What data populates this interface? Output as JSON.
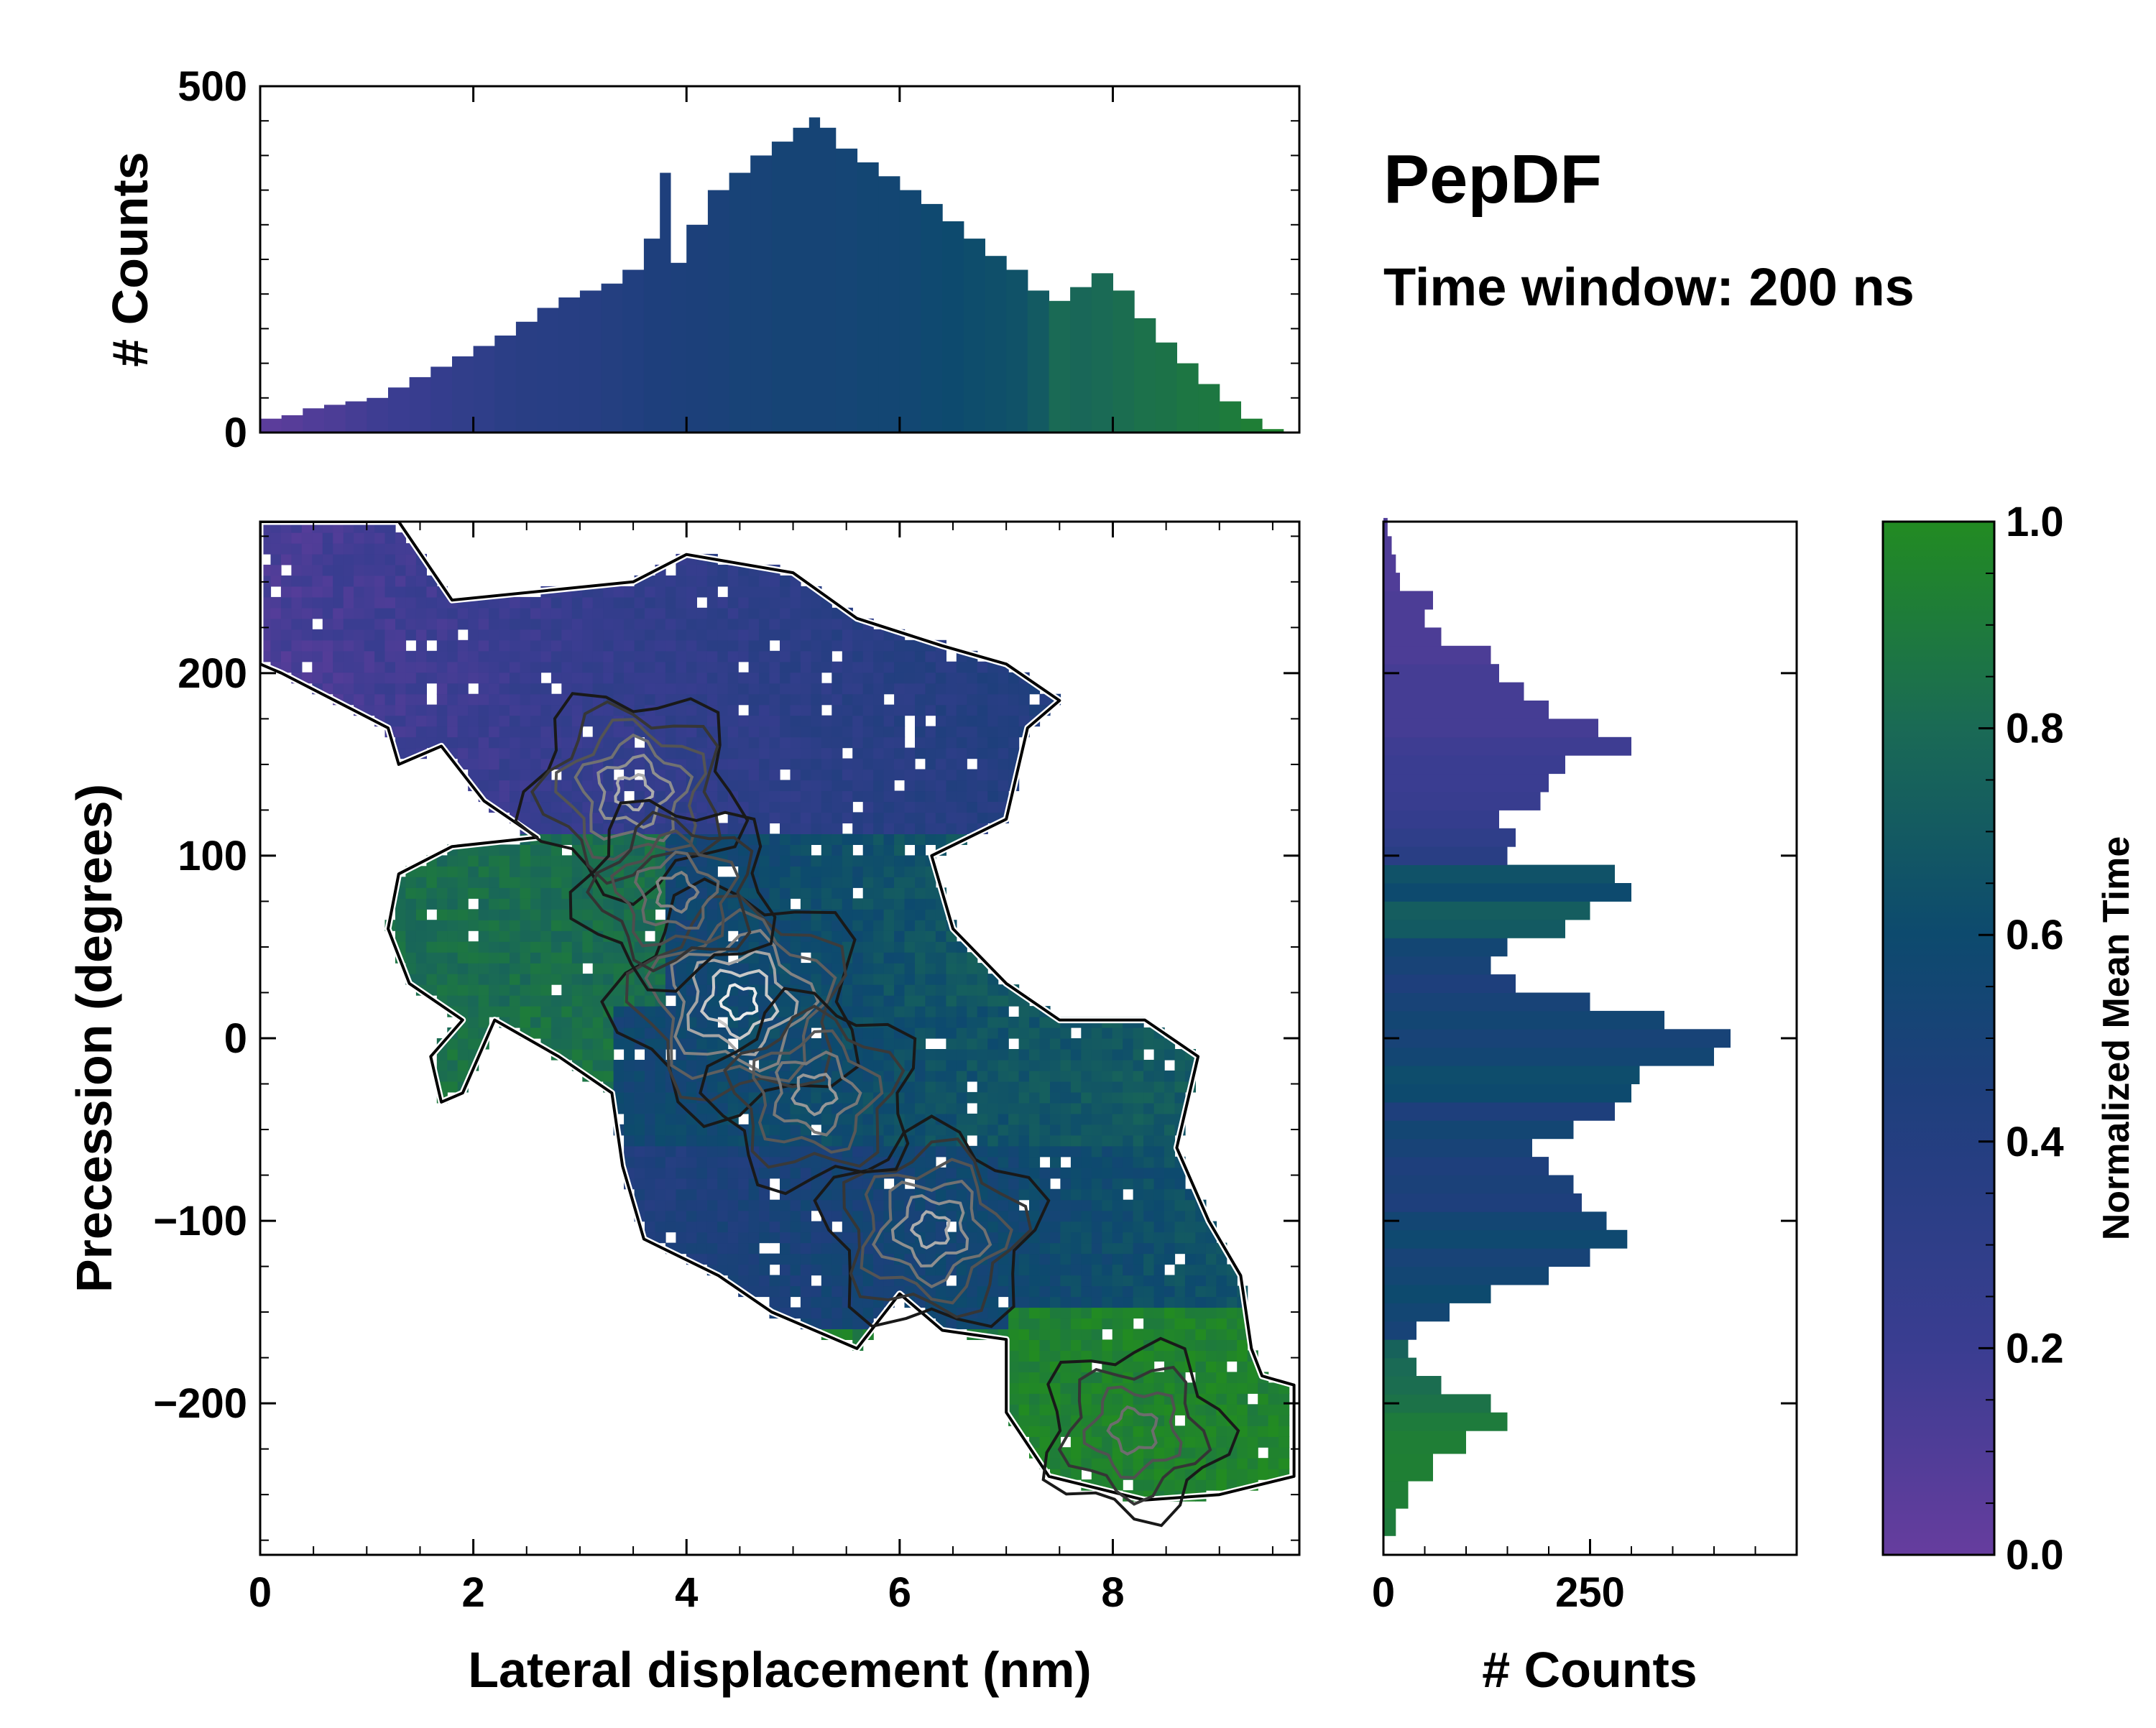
{
  "chart_data": {
    "type": "heatmap",
    "title": "PepDF",
    "subtitle": "Time window: 200 ns",
    "main_panel": {
      "xlabel": "Lateral displacement (nm)",
      "ylabel": "Precession (degrees)",
      "xlim": [
        0,
        9.75
      ],
      "ylim": [
        -283,
        283
      ],
      "x_ticks": [
        0,
        2,
        4,
        6,
        8
      ],
      "x_tick_labels": [
        "0",
        "2",
        "4",
        "6",
        "8"
      ],
      "y_ticks": [
        -200,
        -100,
        0,
        100,
        200
      ],
      "y_tick_labels": [
        "−200",
        "−100",
        "0",
        "100",
        "200"
      ],
      "density_peaks": [
        {
          "x": 4.5,
          "y": 20,
          "intensity": 1.0
        },
        {
          "x": 3.5,
          "y": 135,
          "intensity": 0.7
        },
        {
          "x": 6.3,
          "y": -105,
          "intensity": 0.7
        },
        {
          "x": 5.2,
          "y": -30,
          "intensity": 0.6
        },
        {
          "x": 3.9,
          "y": 80,
          "intensity": 0.5
        },
        {
          "x": 8.2,
          "y": -215,
          "intensity": 0.4
        }
      ]
    },
    "top_histogram": {
      "ylabel": "# Counts",
      "ylim": [
        0,
        500
      ],
      "y_ticks": [
        0,
        500
      ],
      "y_tick_labels": [
        "0",
        "500"
      ],
      "xlim": [
        0,
        9.75
      ],
      "bins_x": [
        0.1,
        0.3,
        0.5,
        0.7,
        0.9,
        1.1,
        1.3,
        1.5,
        1.7,
        1.9,
        2.1,
        2.3,
        2.5,
        2.7,
        2.9,
        3.1,
        3.3,
        3.5,
        3.7,
        3.8,
        3.9,
        4.1,
        4.3,
        4.5,
        4.7,
        4.9,
        5.1,
        5.2,
        5.3,
        5.5,
        5.7,
        5.9,
        6.1,
        6.3,
        6.5,
        6.7,
        6.9,
        7.1,
        7.3,
        7.5,
        7.7,
        7.9,
        8.1,
        8.3,
        8.5,
        8.7,
        8.9,
        9.1,
        9.3,
        9.5,
        9.7
      ],
      "counts": [
        20,
        25,
        35,
        40,
        45,
        50,
        65,
        80,
        95,
        110,
        125,
        140,
        160,
        180,
        195,
        205,
        215,
        235,
        280,
        375,
        245,
        300,
        350,
        375,
        400,
        420,
        440,
        455,
        440,
        410,
        390,
        370,
        350,
        330,
        305,
        280,
        255,
        235,
        205,
        190,
        210,
        230,
        205,
        165,
        130,
        100,
        70,
        45,
        20,
        5,
        0
      ],
      "mean_time": [
        0.05,
        0.07,
        0.1,
        0.12,
        0.15,
        0.18,
        0.2,
        0.22,
        0.25,
        0.28,
        0.3,
        0.33,
        0.35,
        0.36,
        0.37,
        0.38,
        0.4,
        0.42,
        0.45,
        0.45,
        0.46,
        0.47,
        0.48,
        0.5,
        0.5,
        0.52,
        0.52,
        0.52,
        0.52,
        0.53,
        0.55,
        0.55,
        0.56,
        0.58,
        0.6,
        0.62,
        0.63,
        0.65,
        0.7,
        0.8,
        0.78,
        0.8,
        0.82,
        0.84,
        0.85,
        0.87,
        0.88,
        0.9,
        0.92,
        0.95,
        0.97
      ]
    },
    "right_histogram": {
      "xlabel": "# Counts",
      "xlim": [
        0,
        500
      ],
      "x_ticks": [
        0,
        250
      ],
      "x_tick_labels": [
        "0",
        "250"
      ],
      "bins_y": [
        -265,
        -250,
        -235,
        -220,
        -210,
        -200,
        -190,
        -180,
        -170,
        -160,
        -150,
        -140,
        -130,
        -120,
        -110,
        -100,
        -90,
        -80,
        -70,
        -60,
        -50,
        -40,
        -30,
        -20,
        -10,
        0,
        10,
        20,
        30,
        40,
        50,
        60,
        70,
        80,
        90,
        100,
        110,
        120,
        130,
        140,
        150,
        160,
        170,
        180,
        190,
        200,
        210,
        220,
        230,
        240,
        250,
        260,
        270,
        280
      ],
      "counts": [
        15,
        30,
        60,
        100,
        150,
        130,
        70,
        40,
        30,
        40,
        80,
        130,
        200,
        250,
        295,
        270,
        240,
        230,
        200,
        180,
        230,
        280,
        300,
        310,
        400,
        420,
        340,
        250,
        160,
        130,
        150,
        220,
        250,
        300,
        280,
        150,
        160,
        140,
        190,
        200,
        220,
        300,
        260,
        200,
        170,
        140,
        130,
        70,
        50,
        60,
        20,
        15,
        10,
        5
      ],
      "mean_time": [
        0.9,
        0.92,
        0.93,
        0.92,
        0.9,
        0.85,
        0.82,
        0.8,
        0.75,
        0.5,
        0.55,
        0.6,
        0.55,
        0.5,
        0.58,
        0.55,
        0.45,
        0.48,
        0.45,
        0.5,
        0.55,
        0.45,
        0.6,
        0.62,
        0.55,
        0.5,
        0.55,
        0.5,
        0.45,
        0.5,
        0.55,
        0.7,
        0.72,
        0.6,
        0.65,
        0.35,
        0.3,
        0.25,
        0.22,
        0.2,
        0.2,
        0.18,
        0.15,
        0.15,
        0.15,
        0.15,
        0.12,
        0.12,
        0.12,
        0.12,
        0.1,
        0.1,
        0.1,
        0.1
      ]
    },
    "colorbar": {
      "label": "Normalized Mean Time",
      "range": [
        0.0,
        1.0
      ],
      "ticks": [
        0.0,
        0.2,
        0.4,
        0.6,
        0.8,
        1.0
      ],
      "tick_labels": [
        "0.0",
        "0.2",
        "0.4",
        "0.6",
        "0.8",
        "1.0"
      ],
      "colors": [
        "#663d9e",
        "#3a3d91",
        "#1e3f7c",
        "#0d4a6e",
        "#1a6a55",
        "#228b22"
      ]
    }
  }
}
